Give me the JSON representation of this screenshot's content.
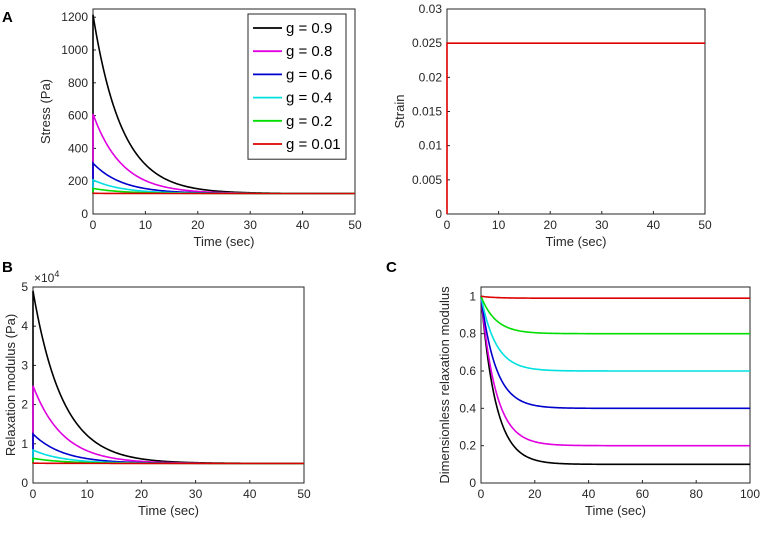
{
  "panels": {
    "A": "A",
    "B": "B",
    "C": "C"
  },
  "chart_data": [
    {
      "id": "stress",
      "type": "line",
      "title": "",
      "xlabel": "Time (sec)",
      "ylabel": "Stress (Pa)",
      "xlim": [
        0,
        50
      ],
      "ylim": [
        0,
        1250
      ],
      "xticks": [
        0,
        10,
        20,
        30,
        40,
        50
      ],
      "yticks": [
        0,
        200,
        400,
        600,
        800,
        1000,
        1200
      ],
      "legend": {
        "placement": "top-right",
        "entries": [
          "g = 0.9",
          "g = 0.8",
          "g = 0.6",
          "g = 0.4",
          "g = 0.2",
          "g = 0.01"
        ]
      },
      "model": {
        "equilibrium": 125,
        "tau": 5.5,
        "x_end": 50
      },
      "series": [
        {
          "name": "g = 0.9",
          "color": "#000000",
          "peak": 1215
        },
        {
          "name": "g = 0.8",
          "color": "#e000e0",
          "peak": 610
        },
        {
          "name": "g = 0.6",
          "color": "#0000cc",
          "peak": 310
        },
        {
          "name": "g = 0.4",
          "color": "#00e0e0",
          "peak": 208
        },
        {
          "name": "g = 0.2",
          "color": "#00dd00",
          "peak": 156
        },
        {
          "name": "g = 0.01",
          "color": "#dd0000",
          "peak": 126
        }
      ]
    },
    {
      "id": "strain",
      "type": "line",
      "title": "",
      "xlabel": "Time (sec)",
      "ylabel": "Strain",
      "xlim": [
        0,
        50
      ],
      "ylim": [
        0,
        0.03
      ],
      "xticks": [
        0,
        10,
        20,
        30,
        40,
        50
      ],
      "yticks": [
        0,
        0.005,
        0.01,
        0.015,
        0.02,
        0.025,
        0.03
      ],
      "series": [
        {
          "name": "strain",
          "color": "#dd0000",
          "x": [
            0,
            0,
            50
          ],
          "y": [
            0,
            0.025,
            0.025
          ]
        }
      ]
    },
    {
      "id": "relaxation",
      "type": "line",
      "title": "",
      "xlabel": "Time (sec)",
      "ylabel": "Relaxation modulus (Pa)",
      "exponent_label": "×10",
      "exponent": "4",
      "xlim": [
        0,
        50
      ],
      "ylim": [
        0,
        5
      ],
      "xticks": [
        0,
        10,
        20,
        30,
        40,
        50
      ],
      "yticks": [
        0,
        1,
        2,
        3,
        4,
        5
      ],
      "model": {
        "equilibrium": 0.5,
        "tau": 5.5,
        "x_end": 50
      },
      "series": [
        {
          "name": "g = 0.9",
          "color": "#000000",
          "peak": 4.9
        },
        {
          "name": "g = 0.8",
          "color": "#e000e0",
          "peak": 2.48
        },
        {
          "name": "g = 0.6",
          "color": "#0000cc",
          "peak": 1.25
        },
        {
          "name": "g = 0.4",
          "color": "#00e0e0",
          "peak": 0.84
        },
        {
          "name": "g = 0.2",
          "color": "#00dd00",
          "peak": 0.63
        },
        {
          "name": "g = 0.01",
          "color": "#dd0000",
          "peak": 0.505
        }
      ]
    },
    {
      "id": "dimensionless",
      "type": "line",
      "title": "",
      "xlabel": "Time (sec)",
      "ylabel": "Dimensionless relaxation modulus",
      "xlim": [
        0,
        100
      ],
      "ylim": [
        0,
        1.05
      ],
      "xticks": [
        0,
        20,
        40,
        60,
        80,
        100
      ],
      "yticks": [
        0,
        0.2,
        0.4,
        0.6,
        0.8,
        1
      ],
      "model": {
        "tau": 5.5,
        "x_end": 100
      },
      "series": [
        {
          "name": "g = 0.9",
          "color": "#000000",
          "plateau": 0.1
        },
        {
          "name": "g = 0.8",
          "color": "#e000e0",
          "plateau": 0.2
        },
        {
          "name": "g = 0.6",
          "color": "#0000cc",
          "plateau": 0.4
        },
        {
          "name": "g = 0.4",
          "color": "#00e0e0",
          "plateau": 0.6
        },
        {
          "name": "g = 0.2",
          "color": "#00dd00",
          "plateau": 0.8
        },
        {
          "name": "g = 0.01",
          "color": "#dd0000",
          "plateau": 0.99
        }
      ]
    }
  ]
}
